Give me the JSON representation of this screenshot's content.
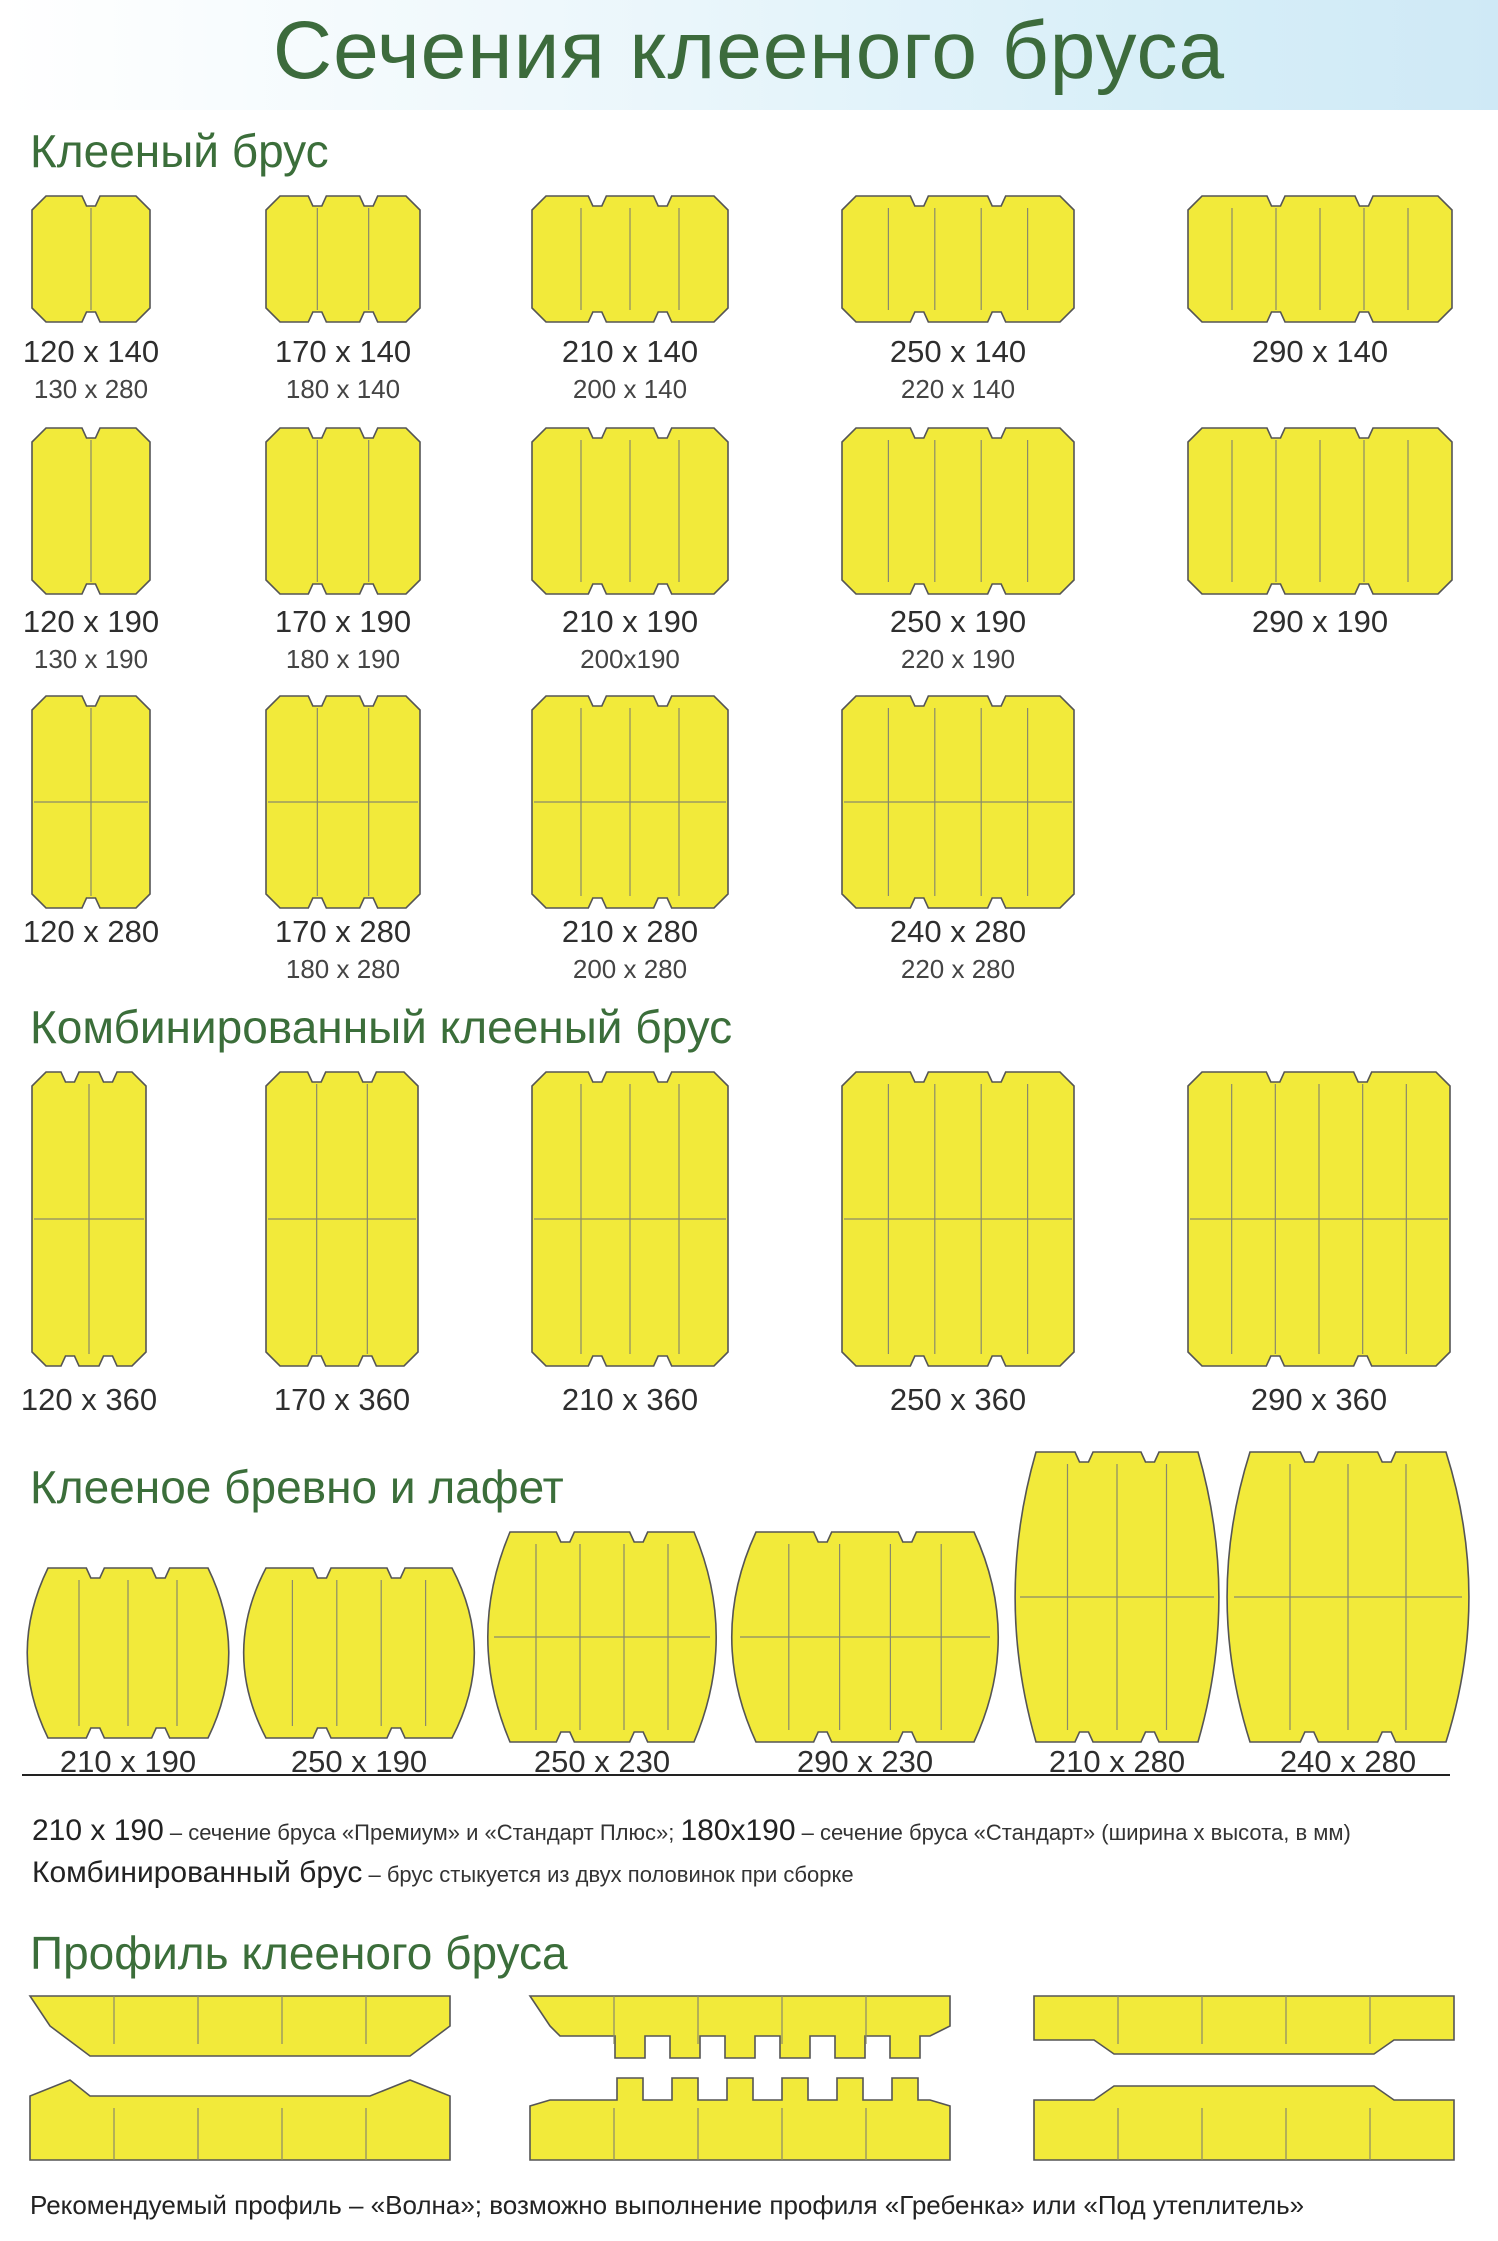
{
  "title": "Сечения клееного бруса",
  "sections": {
    "glued": "Клееный брус",
    "combined": "Комбинированный клееный брус",
    "log": "Клееное бревно и лафет",
    "profile": "Профиль клееного бруса"
  },
  "colors": {
    "beam_fill": "#f2ea3a",
    "heading": "#3b6e3a"
  },
  "glued_rows": [
    [
      {
        "main": "120 x 140",
        "sub": "130 x 280"
      },
      {
        "main": "170 x 140",
        "sub": "180 x 140"
      },
      {
        "main": "210 x 140",
        "sub": "200 x 140"
      },
      {
        "main": "250 x 140",
        "sub": "220 x 140"
      },
      {
        "main": "290 x 140",
        "sub": ""
      }
    ],
    [
      {
        "main": "120 x 190",
        "sub": "130 x 190"
      },
      {
        "main": "170 x 190",
        "sub": "180 x 190"
      },
      {
        "main": "210 x 190",
        "sub": "200x190"
      },
      {
        "main": "250 x 190",
        "sub": "220 x 190"
      },
      {
        "main": "290 x 190",
        "sub": ""
      }
    ],
    [
      {
        "main": "120 x 280",
        "sub": ""
      },
      {
        "main": "170 x 280",
        "sub": "180 x 280"
      },
      {
        "main": "210 x 280",
        "sub": "200 x 280"
      },
      {
        "main": "240 x 280",
        "sub": "220 x 280"
      }
    ]
  ],
  "combined_items": [
    "120 x 360",
    "170 x 360",
    "210 x 360",
    "250 x 360",
    "290 x 360"
  ],
  "log_items": [
    "210 x 190",
    "250 x 190",
    "250 x 230",
    "290 x 230",
    "210 x 280",
    "240 x 280"
  ],
  "notes": {
    "line1_main": "210 x 190",
    "line1_text": " – сечение бруса «Премиум» и «Стандарт Плюс»; ",
    "line1_main2": "180x190",
    "line1_text2": " – сечение бруса «Стандарт» (ширина х высота, в мм)",
    "line2_main": "Комбинированный брус",
    "line2_text": " – брус стыкуется из двух половинок при сборке"
  },
  "footer": "Рекомендуемый профиль – «Волна»; возможно выполнение профиля «Гребенка» или «Под утеплитель»"
}
